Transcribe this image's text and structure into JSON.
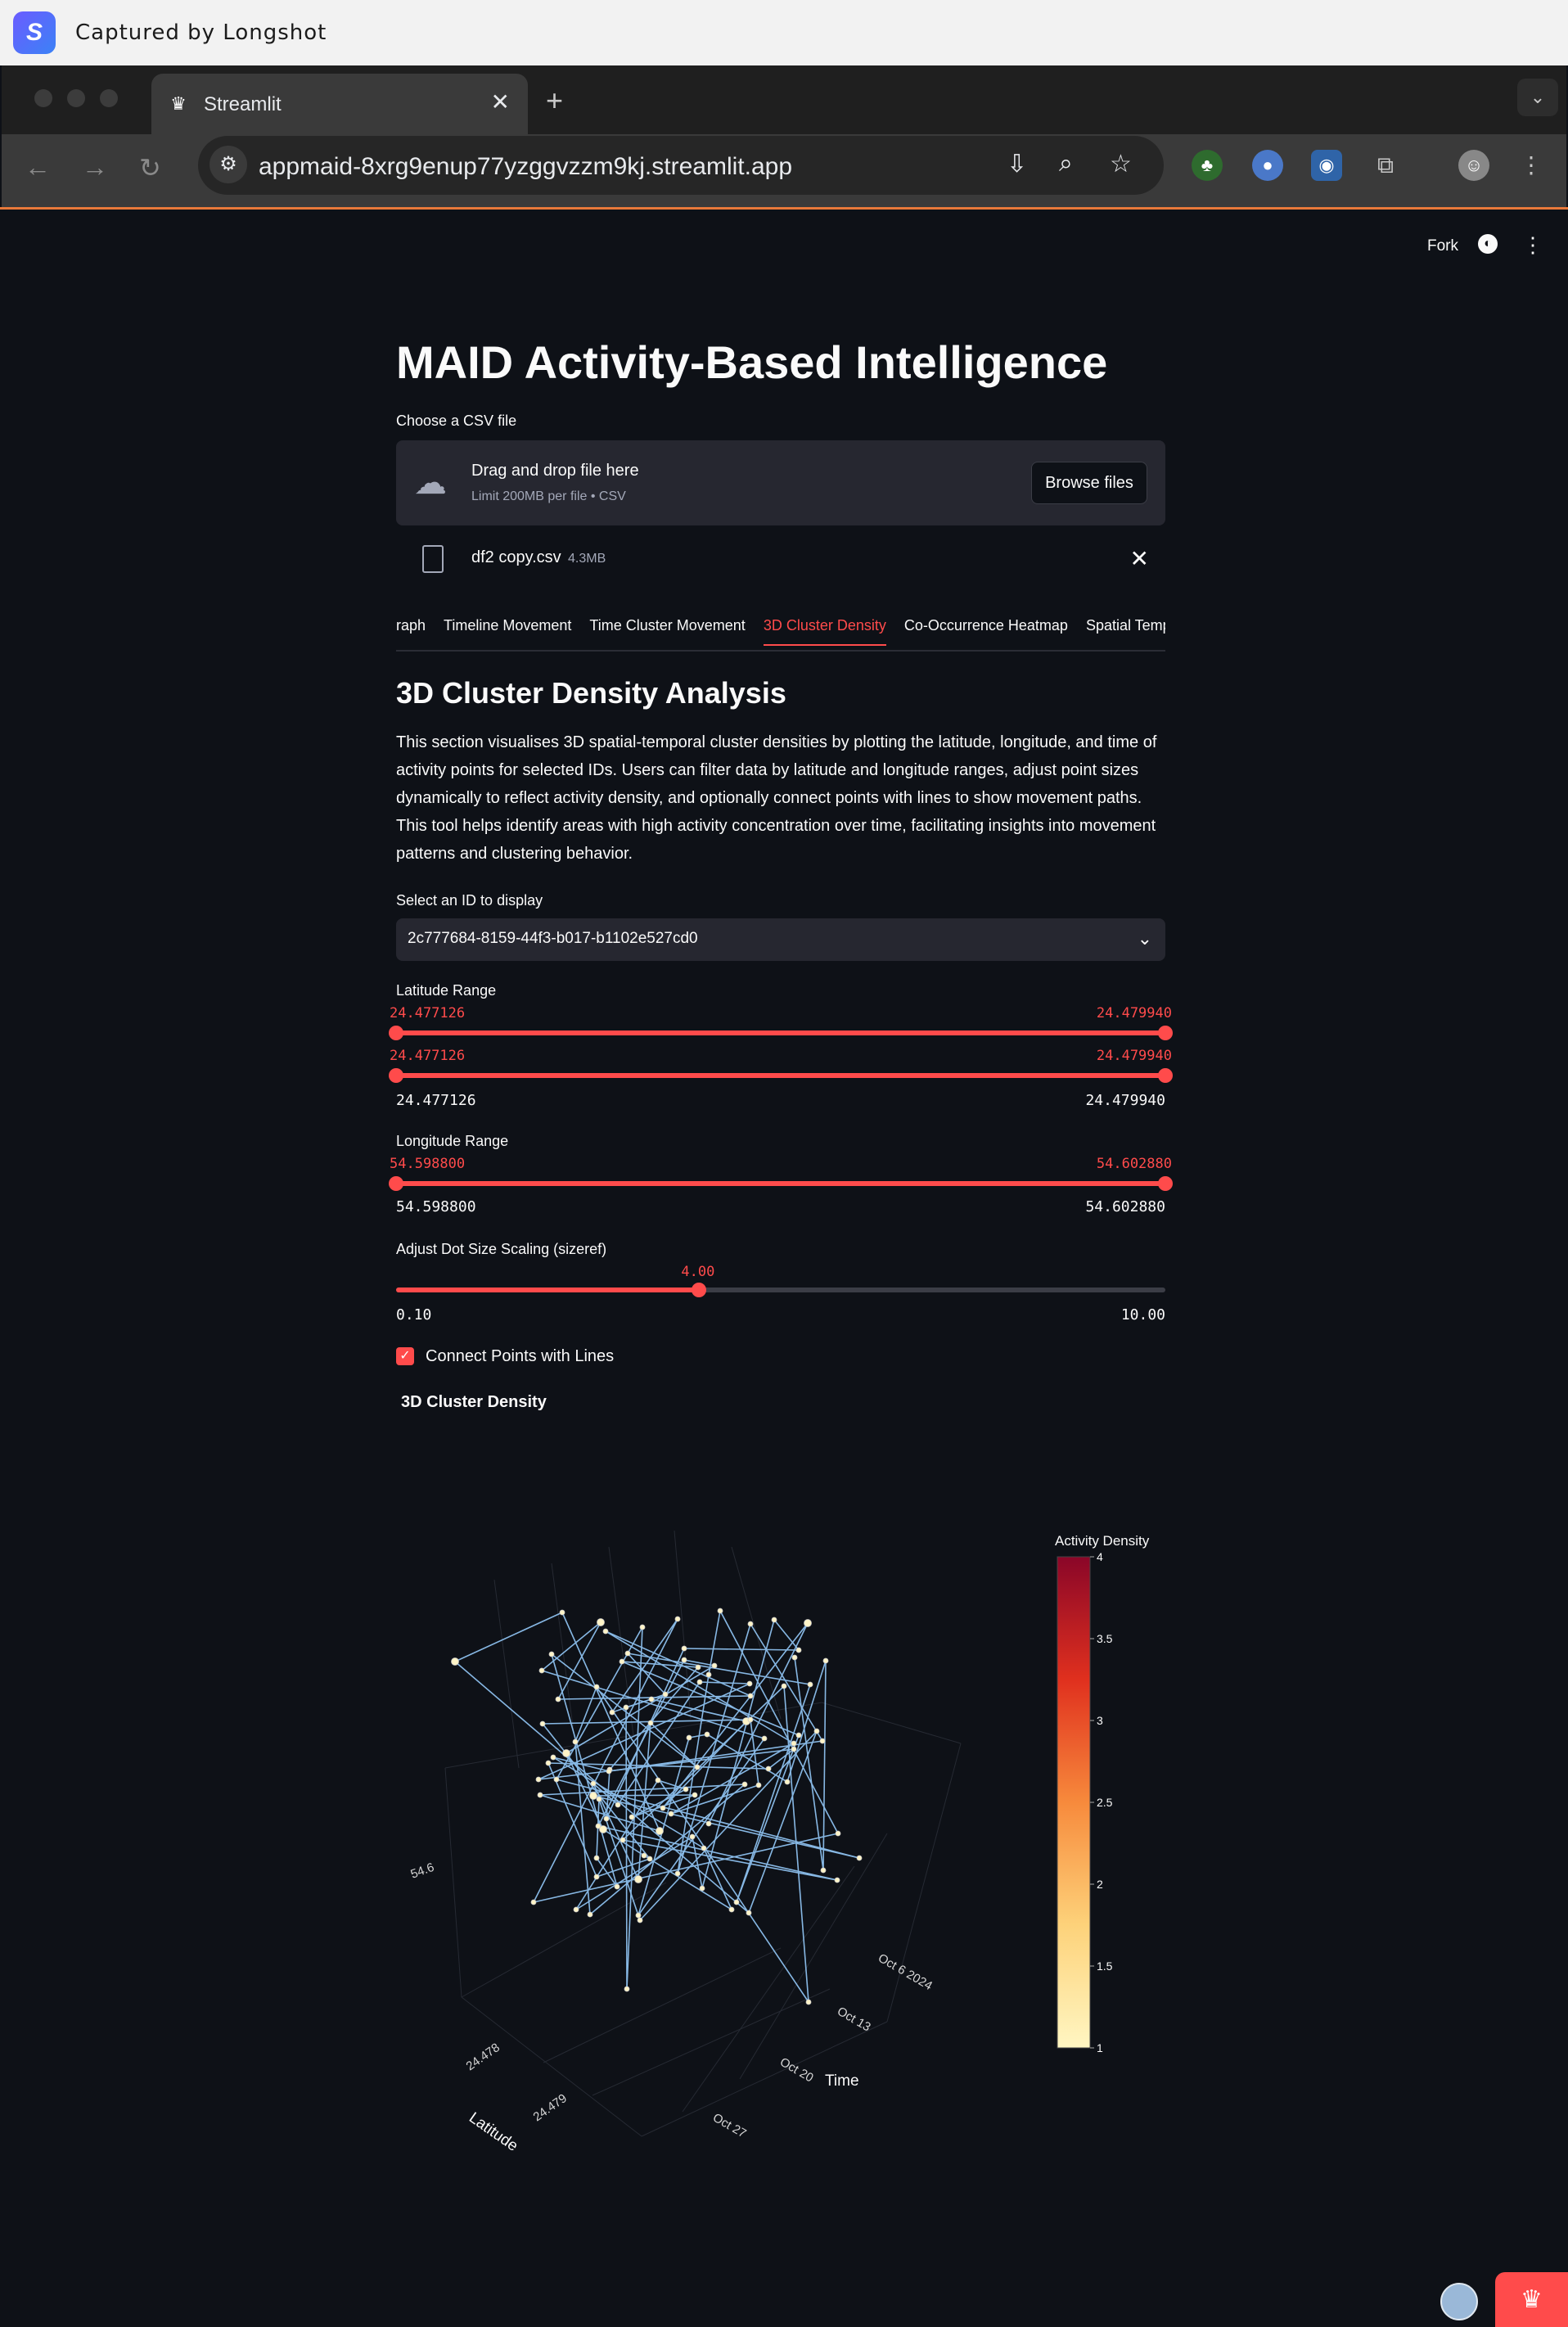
{
  "capture": {
    "title": "Captured by Longshot"
  },
  "browser": {
    "tab_title": "Streamlit",
    "url": "appmaid-8xrg9enup77yzggvzzm9kj.streamlit.app"
  },
  "header": {
    "fork_label": "Fork"
  },
  "app": {
    "title": "MAID Activity-Based Intelligence",
    "uploader": {
      "label": "Choose a CSV file",
      "drag_text": "Drag and drop file here",
      "limit_text": "Limit 200MB per file • CSV",
      "browse_label": "Browse files",
      "file_name": "df2 copy.csv",
      "file_size": "4.3MB"
    },
    "tabs": [
      "Graph",
      "Timeline Movement",
      "Time Cluster Movement",
      "3D Cluster Density",
      "Co-Occurrence Heatmap",
      "Spatial Tempo"
    ],
    "active_tab": "3D Cluster Density",
    "section_title": "3D Cluster Density Analysis",
    "description": "This section visualises 3D spatial-temporal cluster densities by plotting the latitude, longitude, and time of activity points for selected IDs. Users can filter data by latitude and longitude ranges, adjust point sizes dynamically to reflect activity density, and optionally connect points with lines to show movement paths. This tool helps identify areas with high activity concentration over time, facilitating insights into movement patterns and clustering behavior.",
    "id_select": {
      "label": "Select an ID to display",
      "value": "2c777684-8159-44f3-b017-b1102e527cd0"
    },
    "latitude": {
      "label": "Latitude Range",
      "low": "24.477126",
      "high": "24.479940",
      "min": "24.477126",
      "max": "24.479940"
    },
    "longitude": {
      "label": "Longitude Range",
      "low": "54.598800",
      "high": "54.602880",
      "min": "54.598800",
      "max": "54.602880"
    },
    "dot_size": {
      "label": "Adjust Dot Size Scaling (sizeref)",
      "value": "4.00",
      "fraction": 0.394,
      "min": "0.10",
      "max": "10.00"
    },
    "connect_lines": {
      "label": "Connect Points with Lines",
      "checked": true
    }
  },
  "chart_data": {
    "type": "scatter",
    "title": "3D Cluster Density",
    "colorbar": {
      "title": "Activity Density",
      "ticks": [
        "4",
        "3.5",
        "3",
        "2.5",
        "2",
        "1.5",
        "1"
      ],
      "range": [
        1,
        4
      ]
    },
    "axes": {
      "latitude": {
        "label": "Latitude",
        "ticks": [
          "24.478",
          "24.479"
        ]
      },
      "time": {
        "label": "Time",
        "ticks": [
          "Oct 6 2024",
          "Oct 13",
          "Oct 20",
          "Oct 27"
        ]
      },
      "longitude": {
        "ticks": [
          "54.6"
        ]
      }
    },
    "line_color": "#8ec1f0",
    "marker_color": "#fff4c7"
  }
}
